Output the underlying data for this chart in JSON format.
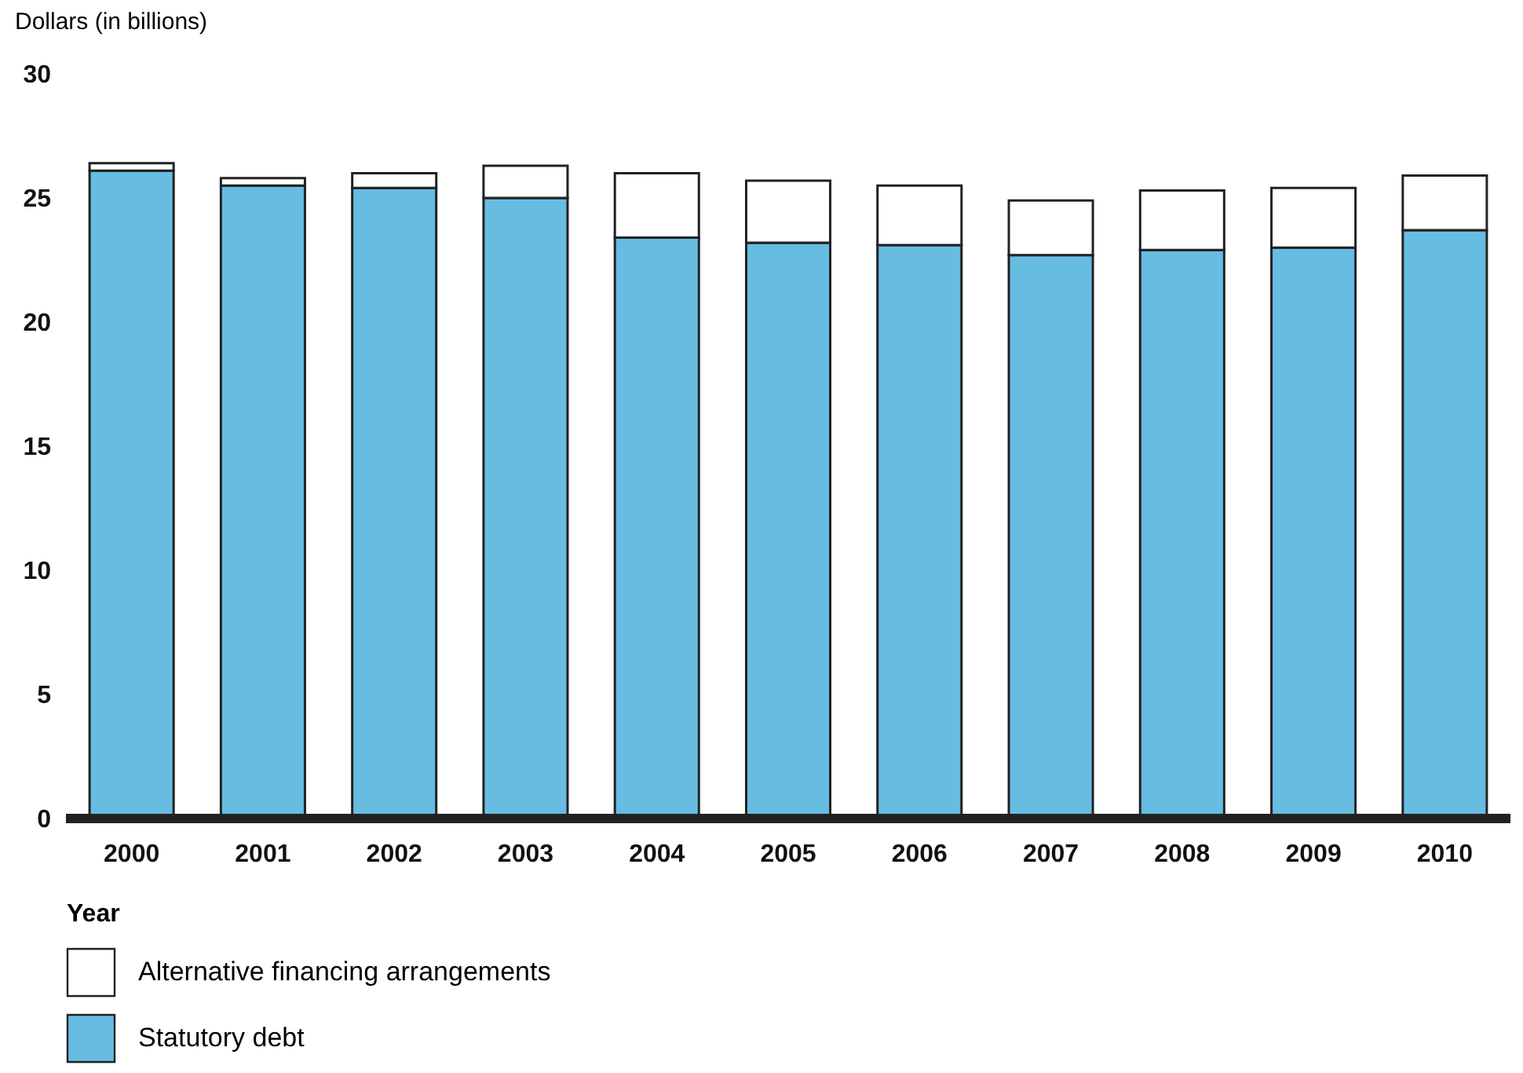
{
  "chart_data": {
    "type": "bar",
    "stacked": true,
    "xlabel": "Year",
    "ylabel": "Dollars (in billions)",
    "categories": [
      "2000",
      "2001",
      "2002",
      "2003",
      "2004",
      "2005",
      "2006",
      "2007",
      "2008",
      "2009",
      "2010"
    ],
    "series": [
      {
        "name": "Statutory debt",
        "color": "#67bce2",
        "values": [
          26.1,
          25.5,
          25.4,
          25.0,
          23.4,
          23.2,
          23.1,
          22.7,
          22.9,
          23.0,
          23.7
        ]
      },
      {
        "name": "Alternative financing arrangements",
        "color": "#ffffff",
        "values": [
          0.3,
          0.3,
          0.6,
          1.3,
          2.6,
          2.5,
          2.4,
          2.2,
          2.4,
          2.4,
          2.2
        ]
      }
    ],
    "ylim": [
      0,
      30
    ],
    "yticks": [
      0,
      5,
      10,
      15,
      20,
      25,
      30
    ],
    "grid": false,
    "legend": "bottom left"
  }
}
